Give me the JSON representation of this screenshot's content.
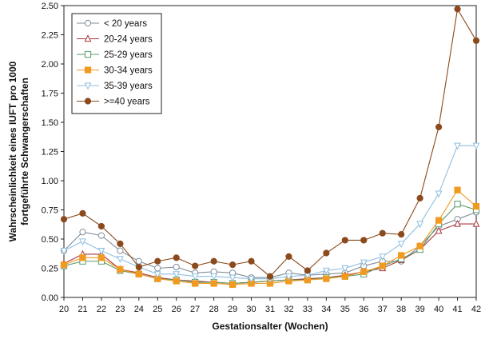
{
  "chart_data": {
    "type": "line",
    "xlabel": "Gestationsalter (Wochen)",
    "ylabel_line1": "Wahrscheinlichkeit eines IUFT pro 1000",
    "ylabel_line2": "fortgeführte Schwangerschaften",
    "x": [
      20,
      21,
      22,
      23,
      24,
      25,
      26,
      27,
      28,
      29,
      30,
      31,
      32,
      33,
      34,
      35,
      36,
      37,
      38,
      39,
      40,
      41,
      42
    ],
    "xlim": [
      20,
      42
    ],
    "ylim": [
      0,
      2.5
    ],
    "yticks": [
      "0.00",
      "0.25",
      "0.50",
      "0.75",
      "1.00",
      "1.25",
      "1.50",
      "1.75",
      "2.00",
      "2.25",
      "2.50"
    ],
    "grid": false,
    "legend_position": "top-left",
    "series": [
      {
        "name": "< 20 years",
        "color": "#7f8c99",
        "marker": "circle-open",
        "values": [
          0.4,
          0.56,
          0.53,
          0.4,
          0.31,
          0.25,
          0.26,
          0.21,
          0.22,
          0.21,
          0.17,
          0.17,
          0.21,
          0.19,
          0.2,
          0.21,
          0.27,
          0.31,
          0.31,
          0.44,
          0.61,
          0.67,
          0.73
        ]
      },
      {
        "name": "20-24 years",
        "color": "#a8383f",
        "marker": "triangle-open",
        "values": [
          0.29,
          0.37,
          0.37,
          0.24,
          0.21,
          0.17,
          0.15,
          0.14,
          0.13,
          0.12,
          0.13,
          0.14,
          0.15,
          0.16,
          0.17,
          0.19,
          0.22,
          0.25,
          0.32,
          0.41,
          0.57,
          0.63,
          0.63
        ]
      },
      {
        "name": "25-29 years",
        "color": "#5a9a6b",
        "marker": "square-open",
        "values": [
          0.27,
          0.31,
          0.31,
          0.23,
          0.2,
          0.16,
          0.15,
          0.13,
          0.13,
          0.12,
          0.13,
          0.14,
          0.15,
          0.15,
          0.17,
          0.18,
          0.2,
          0.27,
          0.33,
          0.41,
          0.63,
          0.8,
          0.75
        ]
      },
      {
        "name": "30-34 years",
        "color": "#f29a1f",
        "marker": "square-filled",
        "values": [
          0.28,
          0.34,
          0.34,
          0.24,
          0.2,
          0.16,
          0.14,
          0.12,
          0.12,
          0.11,
          0.12,
          0.12,
          0.14,
          0.15,
          0.16,
          0.18,
          0.22,
          0.27,
          0.36,
          0.44,
          0.66,
          0.92,
          0.78
        ]
      },
      {
        "name": "35-39 years",
        "color": "#8fbfe0",
        "marker": "triangle-down-open",
        "values": [
          0.4,
          0.48,
          0.4,
          0.33,
          0.26,
          0.2,
          0.2,
          0.18,
          0.18,
          0.17,
          0.16,
          0.16,
          0.18,
          0.19,
          0.23,
          0.25,
          0.3,
          0.35,
          0.46,
          0.63,
          0.89,
          1.3,
          1.3
        ]
      },
      {
        "name": ">=40 years",
        "color": "#8b4a1c",
        "marker": "circle-filled",
        "values": [
          0.67,
          0.72,
          0.61,
          0.46,
          0.26,
          0.31,
          0.34,
          0.27,
          0.31,
          0.28,
          0.31,
          0.18,
          0.35,
          0.23,
          0.38,
          0.49,
          0.49,
          0.55,
          0.54,
          0.85,
          1.46,
          2.47,
          2.2
        ]
      }
    ]
  }
}
